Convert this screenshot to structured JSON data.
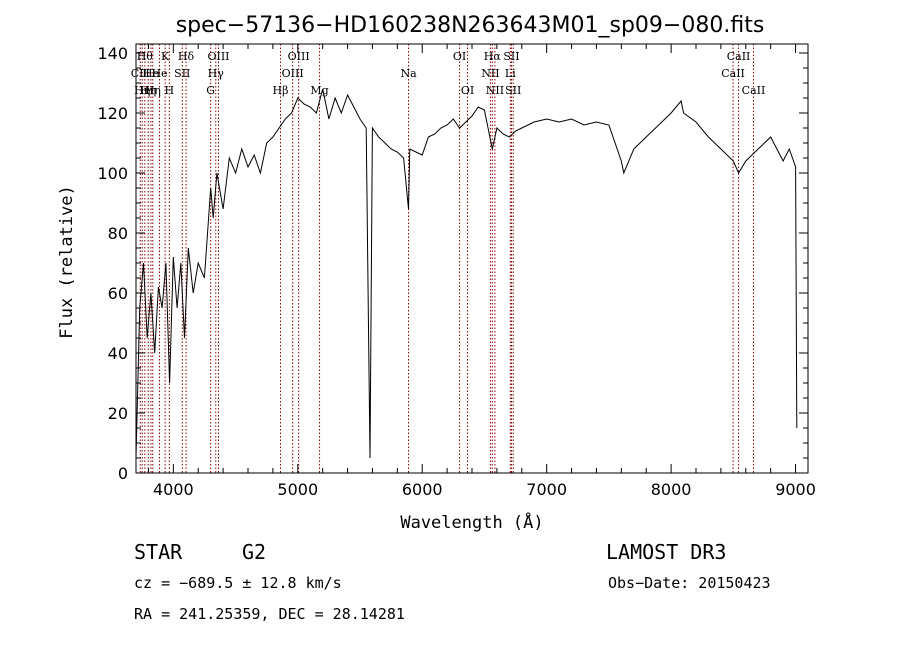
{
  "chart_data": {
    "type": "line",
    "title": "spec−57136−HD160238N263643M01_sp09−080.fits",
    "xlabel": "Wavelength (Å)",
    "ylabel": "Flux (relative)",
    "xlim": [
      3700,
      9100
    ],
    "ylim": [
      0,
      143
    ],
    "xticks": [
      4000,
      5000,
      6000,
      7000,
      8000,
      9000
    ],
    "yticks": [
      0,
      20,
      40,
      60,
      80,
      100,
      120,
      140
    ],
    "grid": false,
    "legend": "none",
    "line_color": "#000000",
    "marker_color": "#8b0000",
    "series": [
      {
        "x": [
          3700,
          3730,
          3760,
          3790,
          3820,
          3850,
          3880,
          3910,
          3940,
          3970,
          4000,
          4030,
          4060,
          4090,
          4120,
          4160,
          4200,
          4250,
          4300,
          4320,
          4350,
          4400,
          4450,
          4500,
          4550,
          4600,
          4650,
          4700,
          4750,
          4800,
          4850,
          4900,
          4950,
          5000,
          5050,
          5100,
          5150,
          5200,
          5250,
          5300,
          5350,
          5400,
          5450,
          5500,
          5550,
          5580,
          5600,
          5650,
          5700,
          5750,
          5800,
          5850,
          5890,
          5900,
          5950,
          6000,
          6050,
          6100,
          6150,
          6200,
          6250,
          6300,
          6350,
          6400,
          6450,
          6500,
          6563,
          6600,
          6650,
          6700,
          6750,
          6800,
          6900,
          7000,
          7100,
          7200,
          7300,
          7400,
          7500,
          7600,
          7620,
          7700,
          7800,
          7900,
          8000,
          8080,
          8100,
          8200,
          8300,
          8400,
          8500,
          8542,
          8600,
          8700,
          8800,
          8900,
          8950,
          9000,
          9010
        ],
        "y": [
          5,
          55,
          70,
          45,
          60,
          40,
          62,
          55,
          70,
          30,
          72,
          55,
          70,
          45,
          75,
          60,
          70,
          65,
          95,
          85,
          100,
          88,
          105,
          100,
          108,
          102,
          106,
          100,
          110,
          112,
          115,
          118,
          120,
          125,
          123,
          122,
          120,
          128,
          118,
          125,
          120,
          126,
          122,
          118,
          115,
          5,
          115,
          112,
          110,
          108,
          107,
          105,
          88,
          108,
          107,
          106,
          112,
          113,
          115,
          116,
          118,
          115,
          117,
          119,
          122,
          121,
          108,
          115,
          113,
          112,
          114,
          115,
          117,
          118,
          117,
          118,
          116,
          117,
          116,
          104,
          100,
          108,
          112,
          116,
          120,
          124,
          120,
          117,
          112,
          108,
          104,
          100,
          104,
          108,
          112,
          104,
          108,
          102,
          15
        ]
      }
    ],
    "lines": [
      {
        "wl": 3734,
        "labels": [
          "CⅢ"
        ],
        "row": 1
      },
      {
        "wl": 3750,
        "labels": [
          "Hη"
        ],
        "row": 2
      },
      {
        "wl": 3771,
        "labels": [
          "Hθ"
        ],
        "row": 0
      },
      {
        "wl": 3798,
        "labels": [
          "Hη"
        ],
        "row": 2
      },
      {
        "wl": 3820,
        "labels": [
          "He"
        ],
        "row": 1
      },
      {
        "wl": 3835,
        "labels": [
          "Hη"
        ],
        "row": 2
      },
      {
        "wl": 3889,
        "labels": [
          "He"
        ],
        "row": 1
      },
      {
        "wl": 3934,
        "labels": [
          "K"
        ],
        "row": 0
      },
      {
        "wl": 3968,
        "labels": [
          "H"
        ],
        "row": 2
      },
      {
        "wl": 4072,
        "labels": [
          "SII"
        ],
        "row": 1
      },
      {
        "wl": 4102,
        "labels": [
          "Hδ"
        ],
        "row": 0
      },
      {
        "wl": 4300,
        "labels": [
          "G"
        ],
        "row": 2
      },
      {
        "wl": 4341,
        "labels": [
          "Hγ"
        ],
        "row": 1
      },
      {
        "wl": 4363,
        "labels": [
          "OIII"
        ],
        "row": 0
      },
      {
        "wl": 4861,
        "labels": [
          "Hβ"
        ],
        "row": 2
      },
      {
        "wl": 4959,
        "labels": [
          "OIII"
        ],
        "row": 1
      },
      {
        "wl": 5007,
        "labels": [
          "OIII"
        ],
        "row": 0
      },
      {
        "wl": 5175,
        "labels": [
          "Mg"
        ],
        "row": 2
      },
      {
        "wl": 5890,
        "labels": [
          "Na"
        ],
        "row": 1
      },
      {
        "wl": 6300,
        "labels": [
          "OI"
        ],
        "row": 0
      },
      {
        "wl": 6364,
        "labels": [
          "OI"
        ],
        "row": 2
      },
      {
        "wl": 6548,
        "labels": [
          "NII"
        ],
        "row": 1
      },
      {
        "wl": 6563,
        "labels": [
          "Hα"
        ],
        "row": 0
      },
      {
        "wl": 6584,
        "labels": [
          "NII"
        ],
        "row": 2
      },
      {
        "wl": 6708,
        "labels": [
          "Li"
        ],
        "row": 1
      },
      {
        "wl": 6717,
        "labels": [
          "SII"
        ],
        "row": 0
      },
      {
        "wl": 6731,
        "labels": [
          "SII"
        ],
        "row": 2
      },
      {
        "wl": 8498,
        "labels": [
          "CaII"
        ],
        "row": 1
      },
      {
        "wl": 8542,
        "labels": [
          "CaII"
        ],
        "row": 0
      },
      {
        "wl": 8662,
        "labels": [
          "CaII"
        ],
        "row": 2
      }
    ]
  },
  "info": {
    "class_label": "STAR",
    "subclass": "G2",
    "survey": "LAMOST DR3",
    "cz": "cz = −689.5 ± 12.8 km/s",
    "obs_date": "Obs−Date: 20150423",
    "coords": "RA = 241.25359, DEC =  28.14281"
  }
}
